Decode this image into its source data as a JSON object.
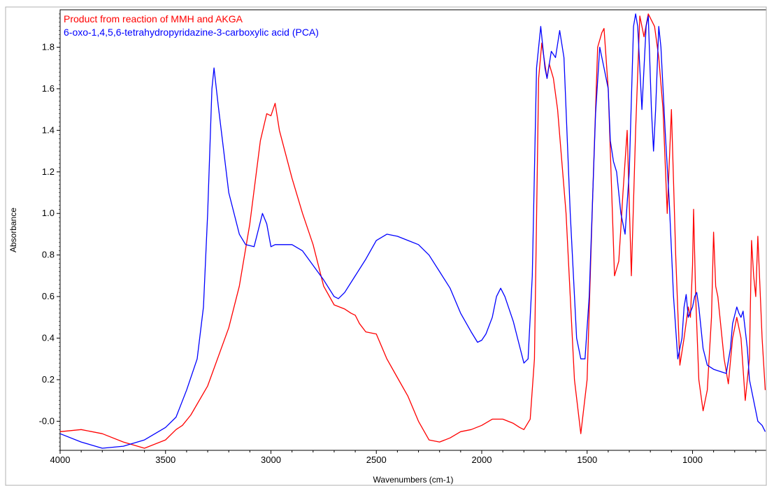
{
  "chart_data": {
    "type": "line",
    "title": "",
    "xlabel": "Wavenumbers (cm-1)",
    "ylabel": "Absorbance",
    "xlim": [
      4000,
      650
    ],
    "ylim": [
      -0.14,
      1.98
    ],
    "x_reversed": true,
    "grid": false,
    "legend_placement": "top-left",
    "x_ticks": [
      4000,
      3500,
      3000,
      2500,
      2000,
      1500,
      1000
    ],
    "x_tick_labels": [
      "4000",
      "3500",
      "3000",
      "2500",
      "2000",
      "1500",
      "1000"
    ],
    "y_ticks": [
      -0.0,
      0.2,
      0.4,
      0.6,
      0.8,
      1.0,
      1.2,
      1.4,
      1.6,
      1.8
    ],
    "y_tick_labels": [
      "-0.0",
      "0.2",
      "0.4",
      "0.6",
      "0.8",
      "1.0",
      "1.2",
      "1.4",
      "1.6",
      "1.8"
    ],
    "series": [
      {
        "name": "Product from reaction of MMH and AKGA",
        "color": "#ff0000",
        "points": [
          [
            4000,
            -0.05
          ],
          [
            3900,
            -0.04
          ],
          [
            3800,
            -0.06
          ],
          [
            3700,
            -0.1
          ],
          [
            3600,
            -0.13
          ],
          [
            3500,
            -0.09
          ],
          [
            3450,
            -0.04
          ],
          [
            3420,
            -0.02
          ],
          [
            3380,
            0.03
          ],
          [
            3300,
            0.17
          ],
          [
            3200,
            0.45
          ],
          [
            3150,
            0.65
          ],
          [
            3100,
            0.95
          ],
          [
            3050,
            1.35
          ],
          [
            3020,
            1.48
          ],
          [
            3000,
            1.47
          ],
          [
            2980,
            1.53
          ],
          [
            2960,
            1.4
          ],
          [
            2900,
            1.17
          ],
          [
            2850,
            1.0
          ],
          [
            2800,
            0.85
          ],
          [
            2750,
            0.65
          ],
          [
            2700,
            0.56
          ],
          [
            2650,
            0.54
          ],
          [
            2620,
            0.52
          ],
          [
            2600,
            0.51
          ],
          [
            2580,
            0.47
          ],
          [
            2550,
            0.43
          ],
          [
            2500,
            0.42
          ],
          [
            2450,
            0.3
          ],
          [
            2400,
            0.21
          ],
          [
            2350,
            0.12
          ],
          [
            2300,
            -0.0
          ],
          [
            2250,
            -0.09
          ],
          [
            2200,
            -0.1
          ],
          [
            2150,
            -0.08
          ],
          [
            2100,
            -0.05
          ],
          [
            2050,
            -0.04
          ],
          [
            2000,
            -0.02
          ],
          [
            1950,
            0.01
          ],
          [
            1900,
            0.01
          ],
          [
            1850,
            -0.01
          ],
          [
            1820,
            -0.03
          ],
          [
            1800,
            -0.04
          ],
          [
            1770,
            0.01
          ],
          [
            1750,
            0.3
          ],
          [
            1730,
            1.65
          ],
          [
            1715,
            1.82
          ],
          [
            1690,
            1.65
          ],
          [
            1680,
            1.72
          ],
          [
            1660,
            1.65
          ],
          [
            1640,
            1.5
          ],
          [
            1600,
            1.0
          ],
          [
            1560,
            0.2
          ],
          [
            1530,
            -0.06
          ],
          [
            1500,
            0.2
          ],
          [
            1470,
            1.2
          ],
          [
            1450,
            1.8
          ],
          [
            1430,
            1.87
          ],
          [
            1420,
            1.89
          ],
          [
            1400,
            1.6
          ],
          [
            1370,
            0.7
          ],
          [
            1350,
            0.77
          ],
          [
            1340,
            0.93
          ],
          [
            1330,
            1.1
          ],
          [
            1310,
            1.4
          ],
          [
            1290,
            0.7
          ],
          [
            1270,
            1.4
          ],
          [
            1250,
            1.95
          ],
          [
            1230,
            1.85
          ],
          [
            1210,
            1.96
          ],
          [
            1180,
            1.9
          ],
          [
            1160,
            1.75
          ],
          [
            1140,
            1.5
          ],
          [
            1120,
            1.0
          ],
          [
            1100,
            1.5
          ],
          [
            1080,
            0.8
          ],
          [
            1060,
            0.27
          ],
          [
            1040,
            0.4
          ],
          [
            1020,
            0.55
          ],
          [
            1010,
            0.5
          ],
          [
            1000,
            0.75
          ],
          [
            995,
            1.02
          ],
          [
            985,
            0.6
          ],
          [
            970,
            0.2
          ],
          [
            950,
            0.05
          ],
          [
            930,
            0.15
          ],
          [
            910,
            0.5
          ],
          [
            900,
            0.91
          ],
          [
            890,
            0.65
          ],
          [
            880,
            0.6
          ],
          [
            870,
            0.5
          ],
          [
            850,
            0.3
          ],
          [
            830,
            0.18
          ],
          [
            810,
            0.4
          ],
          [
            790,
            0.5
          ],
          [
            770,
            0.4
          ],
          [
            750,
            0.1
          ],
          [
            730,
            0.3
          ],
          [
            720,
            0.87
          ],
          [
            710,
            0.7
          ],
          [
            700,
            0.6
          ],
          [
            690,
            0.89
          ],
          [
            670,
            0.4
          ],
          [
            655,
            0.15
          ]
        ]
      },
      {
        "name": "6-oxo-1,4,5,6-tetrahydropyridazine-3-carboxylic acid (PCA)",
        "color": "#0000ff",
        "points": [
          [
            4000,
            -0.06
          ],
          [
            3900,
            -0.1
          ],
          [
            3800,
            -0.13
          ],
          [
            3700,
            -0.12
          ],
          [
            3600,
            -0.09
          ],
          [
            3500,
            -0.03
          ],
          [
            3450,
            0.02
          ],
          [
            3400,
            0.15
          ],
          [
            3350,
            0.3
          ],
          [
            3320,
            0.55
          ],
          [
            3300,
            1.0
          ],
          [
            3280,
            1.6
          ],
          [
            3270,
            1.7
          ],
          [
            3250,
            1.52
          ],
          [
            3200,
            1.1
          ],
          [
            3150,
            0.9
          ],
          [
            3120,
            0.85
          ],
          [
            3080,
            0.84
          ],
          [
            3060,
            0.92
          ],
          [
            3040,
            1.0
          ],
          [
            3020,
            0.95
          ],
          [
            3000,
            0.84
          ],
          [
            2980,
            0.85
          ],
          [
            2950,
            0.85
          ],
          [
            2900,
            0.85
          ],
          [
            2850,
            0.82
          ],
          [
            2800,
            0.75
          ],
          [
            2750,
            0.68
          ],
          [
            2700,
            0.6
          ],
          [
            2680,
            0.59
          ],
          [
            2650,
            0.62
          ],
          [
            2600,
            0.7
          ],
          [
            2550,
            0.78
          ],
          [
            2500,
            0.87
          ],
          [
            2450,
            0.9
          ],
          [
            2400,
            0.89
          ],
          [
            2350,
            0.87
          ],
          [
            2300,
            0.85
          ],
          [
            2250,
            0.8
          ],
          [
            2200,
            0.72
          ],
          [
            2150,
            0.64
          ],
          [
            2100,
            0.52
          ],
          [
            2050,
            0.43
          ],
          [
            2020,
            0.38
          ],
          [
            2000,
            0.39
          ],
          [
            1980,
            0.42
          ],
          [
            1950,
            0.5
          ],
          [
            1930,
            0.6
          ],
          [
            1910,
            0.64
          ],
          [
            1890,
            0.6
          ],
          [
            1850,
            0.48
          ],
          [
            1830,
            0.4
          ],
          [
            1800,
            0.28
          ],
          [
            1780,
            0.3
          ],
          [
            1760,
            0.7
          ],
          [
            1740,
            1.7
          ],
          [
            1720,
            1.9
          ],
          [
            1700,
            1.7
          ],
          [
            1690,
            1.65
          ],
          [
            1670,
            1.78
          ],
          [
            1650,
            1.75
          ],
          [
            1630,
            1.88
          ],
          [
            1610,
            1.75
          ],
          [
            1580,
            1.0
          ],
          [
            1550,
            0.4
          ],
          [
            1530,
            0.3
          ],
          [
            1510,
            0.3
          ],
          [
            1490,
            0.6
          ],
          [
            1460,
            1.48
          ],
          [
            1440,
            1.8
          ],
          [
            1420,
            1.7
          ],
          [
            1400,
            1.6
          ],
          [
            1390,
            1.35
          ],
          [
            1375,
            1.25
          ],
          [
            1360,
            1.2
          ],
          [
            1340,
            1.0
          ],
          [
            1320,
            0.9
          ],
          [
            1300,
            1.2
          ],
          [
            1280,
            1.9
          ],
          [
            1270,
            1.96
          ],
          [
            1260,
            1.9
          ],
          [
            1250,
            1.7
          ],
          [
            1240,
            1.5
          ],
          [
            1220,
            1.9
          ],
          [
            1210,
            1.95
          ],
          [
            1195,
            1.5
          ],
          [
            1185,
            1.3
          ],
          [
            1175,
            1.5
          ],
          [
            1160,
            1.9
          ],
          [
            1150,
            1.8
          ],
          [
            1130,
            1.4
          ],
          [
            1110,
            1.05
          ],
          [
            1090,
            0.6
          ],
          [
            1070,
            0.3
          ],
          [
            1050,
            0.4
          ],
          [
            1040,
            0.55
          ],
          [
            1030,
            0.61
          ],
          [
            1020,
            0.5
          ],
          [
            1000,
            0.55
          ],
          [
            990,
            0.6
          ],
          [
            980,
            0.62
          ],
          [
            970,
            0.55
          ],
          [
            950,
            0.35
          ],
          [
            930,
            0.27
          ],
          [
            900,
            0.25
          ],
          [
            870,
            0.24
          ],
          [
            840,
            0.23
          ],
          [
            820,
            0.35
          ],
          [
            810,
            0.47
          ],
          [
            790,
            0.55
          ],
          [
            780,
            0.52
          ],
          [
            770,
            0.5
          ],
          [
            760,
            0.53
          ],
          [
            740,
            0.35
          ],
          [
            730,
            0.2
          ],
          [
            710,
            0.1
          ],
          [
            690,
            0.0
          ],
          [
            670,
            -0.02
          ],
          [
            655,
            -0.05
          ]
        ]
      }
    ]
  }
}
